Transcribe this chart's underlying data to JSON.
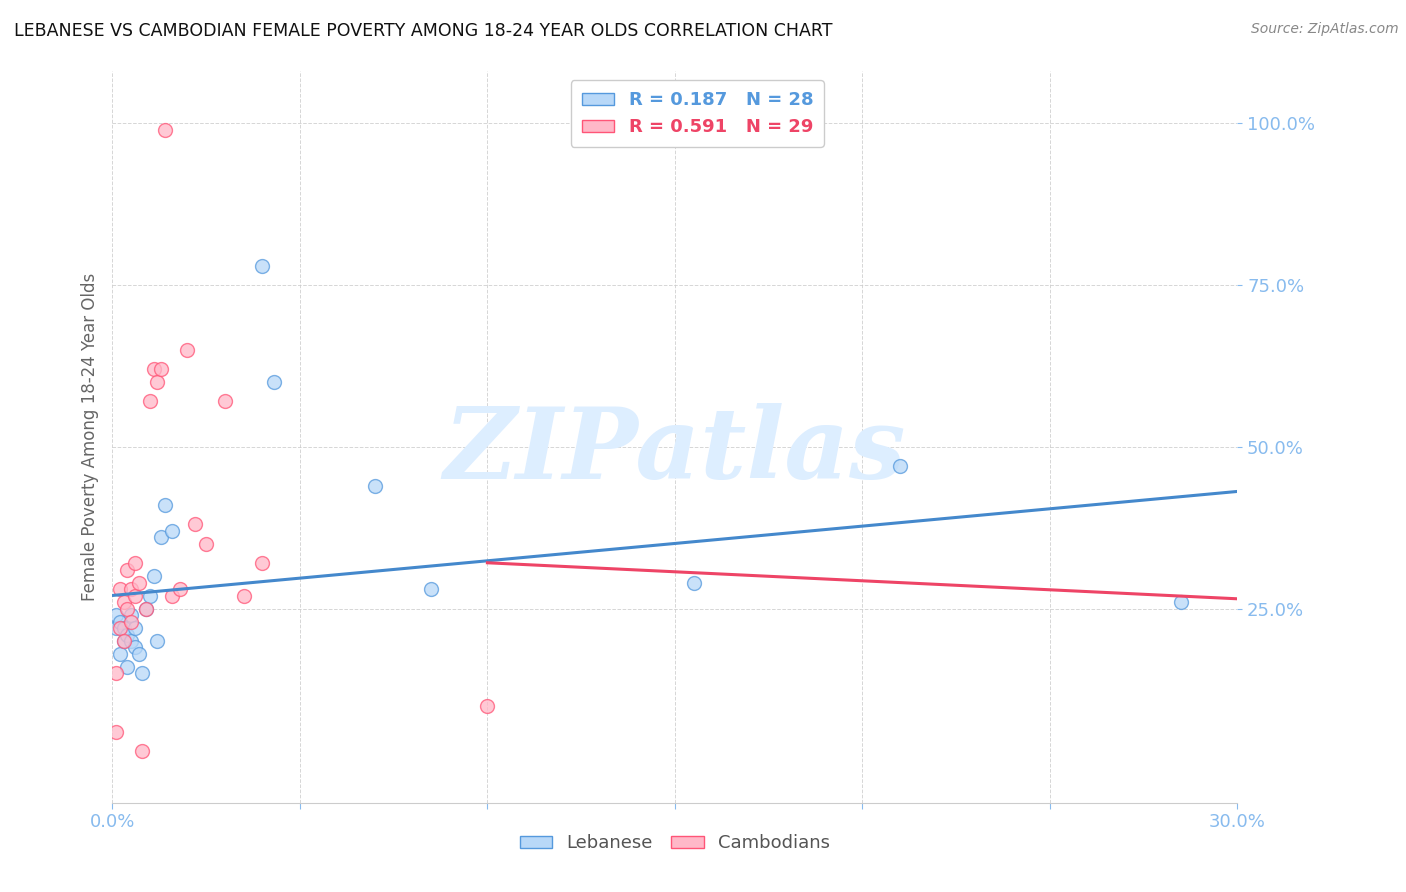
{
  "title": "LEBANESE VS CAMBODIAN FEMALE POVERTY AMONG 18-24 YEAR OLDS CORRELATION CHART",
  "source": "Source: ZipAtlas.com",
  "ylabel": "Female Poverty Among 18-24 Year Olds",
  "xlim": [
    0.0,
    0.3
  ],
  "ylim": [
    -0.05,
    1.08
  ],
  "ytick_values": [
    0.25,
    0.5,
    0.75,
    1.0
  ],
  "ytick_labels": [
    "25.0%",
    "50.0%",
    "75.0%",
    "100.0%"
  ],
  "xtick_values": [
    0.0,
    0.05,
    0.1,
    0.15,
    0.2,
    0.25,
    0.3
  ],
  "xtick_labels": [
    "0.0%",
    "",
    "",
    "",
    "",
    "",
    "30.0%"
  ],
  "leb_R": "0.187",
  "leb_N": "28",
  "cam_R": "0.591",
  "cam_N": "29",
  "lebanese_x": [
    0.001,
    0.001,
    0.002,
    0.002,
    0.003,
    0.003,
    0.004,
    0.004,
    0.005,
    0.005,
    0.006,
    0.006,
    0.007,
    0.008,
    0.009,
    0.01,
    0.011,
    0.012,
    0.013,
    0.014,
    0.016,
    0.04,
    0.043,
    0.07,
    0.085,
    0.155,
    0.21,
    0.285
  ],
  "lebanese_y": [
    0.22,
    0.24,
    0.18,
    0.23,
    0.2,
    0.22,
    0.16,
    0.21,
    0.2,
    0.24,
    0.19,
    0.22,
    0.18,
    0.15,
    0.25,
    0.27,
    0.3,
    0.2,
    0.36,
    0.41,
    0.37,
    0.78,
    0.6,
    0.44,
    0.28,
    0.29,
    0.47,
    0.26
  ],
  "cambodian_x": [
    0.001,
    0.001,
    0.002,
    0.002,
    0.003,
    0.003,
    0.004,
    0.004,
    0.005,
    0.005,
    0.006,
    0.006,
    0.007,
    0.008,
    0.009,
    0.01,
    0.011,
    0.012,
    0.013,
    0.014,
    0.016,
    0.018,
    0.02,
    0.022,
    0.025,
    0.03,
    0.035,
    0.04,
    0.1
  ],
  "cambodian_y": [
    0.06,
    0.15,
    0.22,
    0.28,
    0.2,
    0.26,
    0.25,
    0.31,
    0.28,
    0.23,
    0.27,
    0.32,
    0.29,
    0.03,
    0.25,
    0.57,
    0.62,
    0.6,
    0.62,
    0.99,
    0.27,
    0.28,
    0.65,
    0.38,
    0.35,
    0.57,
    0.27,
    0.32,
    0.1
  ],
  "lebanese_face_color": "#b8d8f8",
  "lebanese_edge_color": "#5599dd",
  "cambodian_face_color": "#ffb8c8",
  "cambodian_edge_color": "#ff5577",
  "lebanese_trend_color": "#4488cc",
  "cambodian_trend_color": "#ee4466",
  "marker_size": 100,
  "marker_alpha": 0.75,
  "grid_color": "#cccccc",
  "bg_color": "#ffffff",
  "title_color": "#111111",
  "axis_color": "#88bbee",
  "watermark_color": "#ddeeff",
  "watermark_text": "ZIPatlas",
  "legend_leb_color": "#5599dd",
  "legend_cam_color": "#ee4466"
}
